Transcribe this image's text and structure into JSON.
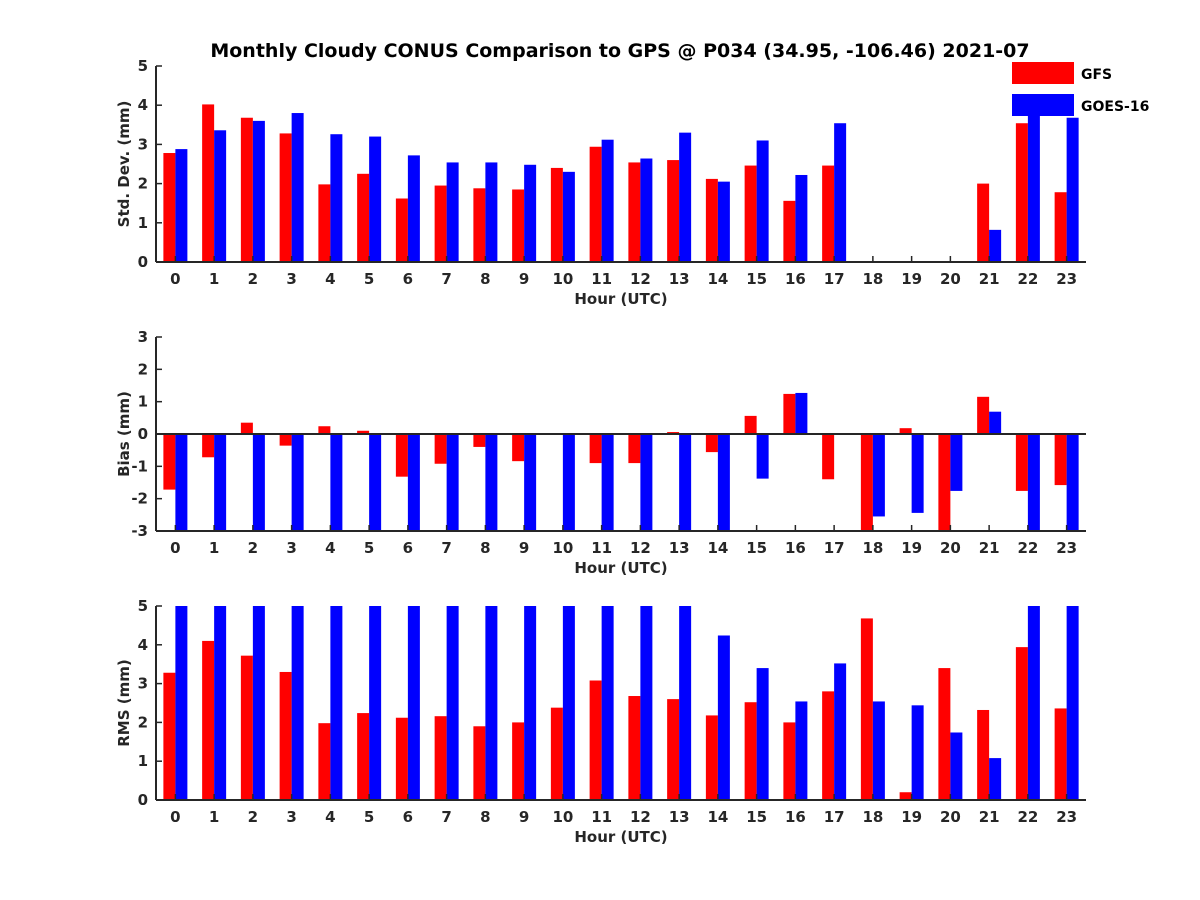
{
  "title": "Monthly Cloudy CONUS Comparison to GPS @ P034 (34.95, -106.46) 2021-07",
  "legend": [
    {
      "label": "GFS",
      "color": "#ff0000"
    },
    {
      "label": "GOES-16",
      "color": "#0000ff"
    }
  ],
  "chart_data": [
    {
      "type": "bar",
      "xlabel": "Hour (UTC)",
      "ylabel": "Std. Dev. (mm)",
      "ylim": [
        0,
        5
      ],
      "yticks": [
        "0",
        "1",
        "2",
        "3",
        "4",
        "5"
      ],
      "categories": [
        "0",
        "1",
        "2",
        "3",
        "4",
        "5",
        "6",
        "7",
        "8",
        "9",
        "10",
        "11",
        "12",
        "13",
        "14",
        "15",
        "16",
        "17",
        "18",
        "19",
        "20",
        "21",
        "22",
        "23"
      ],
      "series": [
        {
          "name": "GFS",
          "color": "#ff0000",
          "values": [
            2.78,
            4.02,
            3.68,
            3.28,
            1.98,
            2.25,
            1.62,
            1.95,
            1.88,
            1.85,
            2.4,
            2.94,
            2.54,
            2.6,
            2.12,
            2.46,
            1.56,
            2.46,
            null,
            null,
            null,
            2.0,
            3.54,
            1.78
          ]
        },
        {
          "name": "GOES-16",
          "color": "#0000ff",
          "values": [
            2.88,
            3.36,
            3.6,
            3.8,
            3.26,
            3.2,
            2.72,
            2.54,
            2.54,
            2.48,
            2.3,
            3.12,
            2.64,
            3.3,
            2.05,
            3.1,
            2.22,
            3.54,
            null,
            null,
            null,
            0.82,
            4.12,
            3.68
          ]
        }
      ]
    },
    {
      "type": "bar",
      "xlabel": "Hour (UTC)",
      "ylabel": "Bias (mm)",
      "ylim": [
        -3,
        3
      ],
      "yticks": [
        "-3",
        "-2",
        "-1",
        "0",
        "1",
        "2",
        "3"
      ],
      "categories": [
        "0",
        "1",
        "2",
        "3",
        "4",
        "5",
        "6",
        "7",
        "8",
        "9",
        "10",
        "11",
        "12",
        "13",
        "14",
        "15",
        "16",
        "17",
        "18",
        "19",
        "20",
        "21",
        "22",
        "23"
      ],
      "series": [
        {
          "name": "GFS",
          "color": "#ff0000",
          "values": [
            -1.72,
            -0.72,
            0.35,
            -0.36,
            0.24,
            0.1,
            -1.32,
            -0.92,
            -0.4,
            -0.84,
            0.02,
            -0.9,
            -0.9,
            0.06,
            -0.56,
            0.56,
            1.24,
            -1.4,
            -3.0,
            0.18,
            -3.0,
            1.15,
            -1.76,
            -1.58
          ]
        },
        {
          "name": "GOES-16",
          "color": "#0000ff",
          "values": [
            -3.0,
            -3.0,
            -3.0,
            -3.0,
            -3.0,
            -3.0,
            -3.0,
            -3.0,
            -3.0,
            -3.0,
            -3.0,
            -3.0,
            -3.0,
            -3.0,
            -3.0,
            -1.38,
            1.27,
            null,
            -2.55,
            -2.44,
            -1.76,
            0.69,
            -3.0,
            -3.0
          ]
        }
      ]
    },
    {
      "type": "bar",
      "xlabel": "Hour (UTC)",
      "ylabel": "RMS (mm)",
      "ylim": [
        0,
        5
      ],
      "yticks": [
        "0",
        "1",
        "2",
        "3",
        "4",
        "5"
      ],
      "categories": [
        "0",
        "1",
        "2",
        "3",
        "4",
        "5",
        "6",
        "7",
        "8",
        "9",
        "10",
        "11",
        "12",
        "13",
        "14",
        "15",
        "16",
        "17",
        "18",
        "19",
        "20",
        "21",
        "22",
        "23"
      ],
      "series": [
        {
          "name": "GFS",
          "color": "#ff0000",
          "values": [
            3.28,
            4.1,
            3.72,
            3.3,
            1.98,
            2.24,
            2.12,
            2.16,
            1.9,
            2.0,
            2.38,
            3.08,
            2.68,
            2.6,
            2.18,
            2.52,
            2.0,
            2.8,
            4.68,
            0.2,
            3.4,
            2.32,
            3.94,
            2.36
          ]
        },
        {
          "name": "GOES-16",
          "color": "#0000ff",
          "values": [
            5.0,
            5.0,
            5.0,
            5.0,
            5.0,
            5.0,
            5.0,
            5.0,
            5.0,
            5.0,
            5.0,
            5.0,
            5.0,
            5.0,
            4.24,
            3.4,
            2.54,
            3.52,
            2.54,
            2.44,
            1.74,
            1.08,
            5.0,
            5.0
          ]
        }
      ]
    }
  ]
}
